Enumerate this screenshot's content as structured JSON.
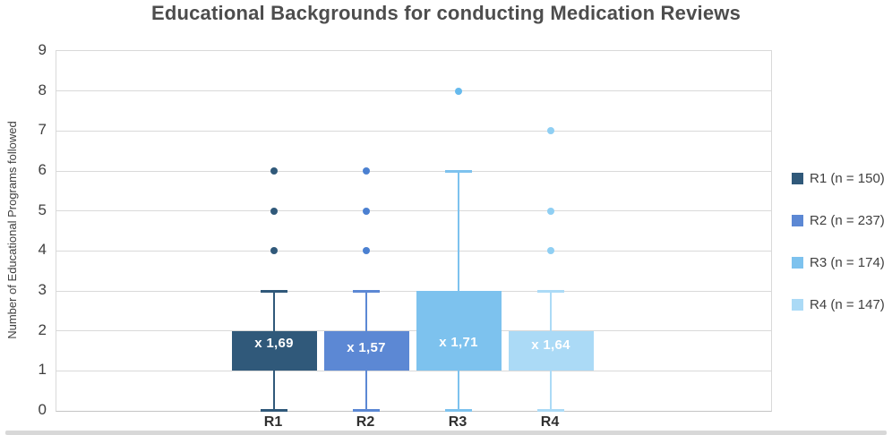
{
  "chart_data": {
    "type": "boxplot",
    "title": "Educational Backgrounds for conducting Medication Reviews",
    "ylabel": "Number of Educational Programs followed",
    "xlabel": "",
    "ylim": [
      0,
      9
    ],
    "yticks": [
      0,
      1,
      2,
      3,
      4,
      5,
      6,
      7,
      8,
      9
    ],
    "categories": [
      "R1",
      "R2",
      "R3",
      "R4"
    ],
    "grid": true,
    "grid_color": "#D9D9D9",
    "legend_position": "right",
    "series": [
      {
        "name": "R1",
        "legend_label": "R1 (n = 150)",
        "n": 150,
        "color": "#30597A",
        "marker_color": "#30597A",
        "whisker_low": 0,
        "q1": 1,
        "q3": 2,
        "whisker_high": 3,
        "mean": 1.69,
        "mean_label": "x 1,69",
        "outliers": [
          4,
          5,
          6
        ]
      },
      {
        "name": "R2",
        "legend_label": "R2 (n = 237)",
        "n": 237,
        "color": "#5C88D4",
        "marker_color": "#4B80D1",
        "whisker_low": 0,
        "q1": 1,
        "q3": 2,
        "whisker_high": 3,
        "mean": 1.57,
        "mean_label": "x 1,57",
        "outliers": [
          4,
          5,
          6
        ]
      },
      {
        "name": "R3",
        "legend_label": "R3 (n = 174)",
        "n": 174,
        "color": "#7DC2EE",
        "marker_color": "#66BAED",
        "whisker_low": 0,
        "q1": 1,
        "q3": 3,
        "whisker_high": 6,
        "mean": 1.71,
        "mean_label": "x 1,71",
        "outliers": [
          8
        ]
      },
      {
        "name": "R4",
        "legend_label": "R4 (n = 147)",
        "n": 147,
        "color": "#ABDAF6",
        "marker_color": "#8FCFF3",
        "whisker_low": 0,
        "q1": 1,
        "q3": 2,
        "whisker_high": 3,
        "mean": 1.64,
        "mean_label": "x 1,64",
        "outliers": [
          4,
          5,
          7
        ]
      }
    ]
  }
}
